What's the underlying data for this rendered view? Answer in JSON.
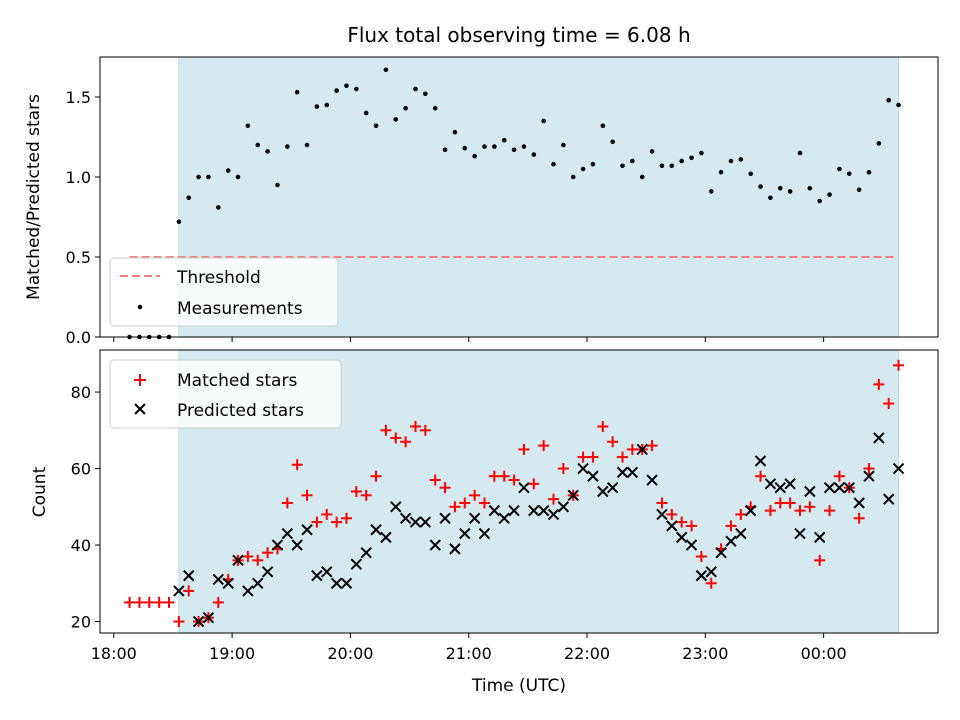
{
  "title": "Flux total observing time = 6.08 h",
  "top_ylabel": "Matched/Predicted stars",
  "bottom_ylabel": "Count",
  "xlabel": "Time (UTC)",
  "top_legend": {
    "threshold": "Threshold",
    "measurements": "Measurements"
  },
  "bottom_legend": {
    "matched": "Matched stars",
    "predicted": "Predicted stars"
  },
  "colors": {
    "span": "#d4eaf0",
    "threshold": "#f08080",
    "measurements": "#000000",
    "matched": "#ff0000",
    "predicted": "#000000"
  },
  "chart_data": [
    {
      "type": "scatter",
      "title": "Flux total observing time = 6.08 h",
      "ylabel": "Matched/Predicted stars",
      "ylim": [
        0,
        1.75
      ],
      "xlim": [
        "17:53",
        "00:58"
      ],
      "yticks": [
        0.0,
        0.5,
        1.0,
        1.5
      ],
      "ytick_labels": [
        "0.0",
        "0.5",
        "1.0",
        "1.5"
      ],
      "span_x": [
        "18:33",
        "00:38"
      ],
      "threshold": {
        "y": 0.5,
        "x_range": [
          "18:08",
          "00:36"
        ]
      },
      "series": [
        {
          "name": "Measurements",
          "x": [
            "18:08",
            "18:13",
            "18:18",
            "18:23",
            "18:28",
            "18:33",
            "18:38",
            "18:43",
            "18:48",
            "18:53",
            "18:58",
            "19:03",
            "19:08",
            "19:13",
            "19:18",
            "19:23",
            "19:28",
            "19:33",
            "19:38",
            "19:43",
            "19:48",
            "19:53",
            "19:58",
            "20:03",
            "20:08",
            "20:13",
            "20:18",
            "20:23",
            "20:28",
            "20:33",
            "20:38",
            "20:43",
            "20:48",
            "20:53",
            "20:58",
            "21:03",
            "21:08",
            "21:13",
            "21:18",
            "21:23",
            "21:28",
            "21:33",
            "21:38",
            "21:43",
            "21:48",
            "21:53",
            "21:58",
            "22:03",
            "22:08",
            "22:13",
            "22:18",
            "22:23",
            "22:28",
            "22:33",
            "22:38",
            "22:43",
            "22:48",
            "22:53",
            "22:58",
            "23:03",
            "23:08",
            "23:13",
            "23:18",
            "23:23",
            "23:28",
            "23:33",
            "23:38",
            "23:43",
            "23:48",
            "23:53",
            "23:58",
            "00:03",
            "00:08",
            "00:13",
            "00:18",
            "00:23",
            "00:28",
            "00:33",
            "00:38"
          ],
          "y": [
            0.0,
            0.0,
            0.0,
            0.0,
            0.0,
            0.72,
            0.87,
            1.0,
            1.0,
            0.81,
            1.04,
            1.0,
            1.32,
            1.2,
            1.16,
            0.95,
            1.19,
            1.53,
            1.2,
            1.44,
            1.45,
            1.54,
            1.57,
            1.55,
            1.4,
            1.32,
            1.67,
            1.36,
            1.43,
            1.55,
            1.52,
            1.43,
            1.17,
            1.28,
            1.18,
            1.13,
            1.19,
            1.19,
            1.23,
            1.17,
            1.19,
            1.14,
            1.35,
            1.08,
            1.2,
            1.0,
            1.05,
            1.08,
            1.32,
            1.22,
            1.07,
            1.1,
            1.0,
            1.16,
            1.07,
            1.07,
            1.1,
            1.12,
            1.15,
            0.91,
            1.03,
            1.1,
            1.11,
            1.02,
            0.94,
            0.87,
            0.93,
            0.91,
            1.15,
            0.93,
            0.85,
            0.89,
            1.05,
            1.02,
            0.92,
            1.03,
            1.21,
            1.48,
            1.45
          ]
        }
      ]
    },
    {
      "type": "scatter",
      "xlabel": "Time (UTC)",
      "ylabel": "Count",
      "ylim": [
        17,
        91
      ],
      "xlim": [
        "17:53",
        "00:58"
      ],
      "yticks": [
        20,
        40,
        60,
        80
      ],
      "ytick_labels": [
        "20",
        "40",
        "60",
        "80"
      ],
      "xticks": [
        "18:00",
        "19:00",
        "20:00",
        "21:00",
        "22:00",
        "23:00",
        "00:00"
      ],
      "xtick_labels": [
        "18:00",
        "19:00",
        "20:00",
        "21:00",
        "22:00",
        "23:00",
        "00:00"
      ],
      "span_x": [
        "18:33",
        "00:38"
      ],
      "x": [
        "18:08",
        "18:13",
        "18:18",
        "18:23",
        "18:28",
        "18:33",
        "18:38",
        "18:43",
        "18:48",
        "18:53",
        "18:58",
        "19:03",
        "19:08",
        "19:13",
        "19:18",
        "19:23",
        "19:28",
        "19:33",
        "19:38",
        "19:43",
        "19:48",
        "19:53",
        "19:58",
        "20:03",
        "20:08",
        "20:13",
        "20:18",
        "20:23",
        "20:28",
        "20:33",
        "20:38",
        "20:43",
        "20:48",
        "20:53",
        "20:58",
        "21:03",
        "21:08",
        "21:13",
        "21:18",
        "21:23",
        "21:28",
        "21:33",
        "21:38",
        "21:43",
        "21:48",
        "21:53",
        "21:58",
        "22:03",
        "22:08",
        "22:13",
        "22:18",
        "22:23",
        "22:28",
        "22:33",
        "22:38",
        "22:43",
        "22:48",
        "22:53",
        "22:58",
        "23:03",
        "23:08",
        "23:13",
        "23:18",
        "23:23",
        "23:28",
        "23:33",
        "23:38",
        "23:43",
        "23:48",
        "23:53",
        "23:58",
        "00:03",
        "00:08",
        "00:13",
        "00:18",
        "00:23",
        "00:28",
        "00:33",
        "00:38"
      ],
      "series": [
        {
          "name": "Matched stars",
          "marker": "plus",
          "values": [
            25,
            25,
            25,
            25,
            25,
            20,
            28,
            20,
            21,
            25,
            31,
            36,
            37,
            36,
            38,
            39,
            51,
            61,
            53,
            46,
            48,
            46,
            47,
            54,
            53,
            58,
            70,
            68,
            67,
            71,
            70,
            57,
            55,
            50,
            51,
            53,
            51,
            58,
            58,
            57,
            65,
            56,
            66,
            52,
            60,
            53,
            63,
            63,
            71,
            67,
            63,
            65,
            65,
            66,
            51,
            48,
            46,
            45,
            37,
            30,
            39,
            45,
            48,
            50,
            58,
            49,
            51,
            51,
            49,
            50,
            36,
            49,
            58,
            55,
            47,
            60,
            82,
            77,
            87
          ]
        },
        {
          "name": "Predicted stars",
          "marker": "x",
          "values": [
            null,
            null,
            null,
            null,
            null,
            28,
            32,
            20,
            21,
            31,
            30,
            36,
            28,
            30,
            33,
            40,
            43,
            40,
            44,
            32,
            33,
            30,
            30,
            35,
            38,
            44,
            42,
            50,
            47,
            46,
            46,
            40,
            47,
            39,
            43,
            47,
            43,
            49,
            47,
            49,
            55,
            49,
            49,
            48,
            50,
            53,
            60,
            58,
            54,
            55,
            59,
            59,
            65,
            57,
            48,
            45,
            42,
            40,
            32,
            33,
            38,
            41,
            43,
            49,
            62,
            56,
            55,
            56,
            43,
            54,
            42,
            55,
            55,
            55,
            51,
            58,
            68,
            52,
            60
          ]
        }
      ]
    }
  ]
}
